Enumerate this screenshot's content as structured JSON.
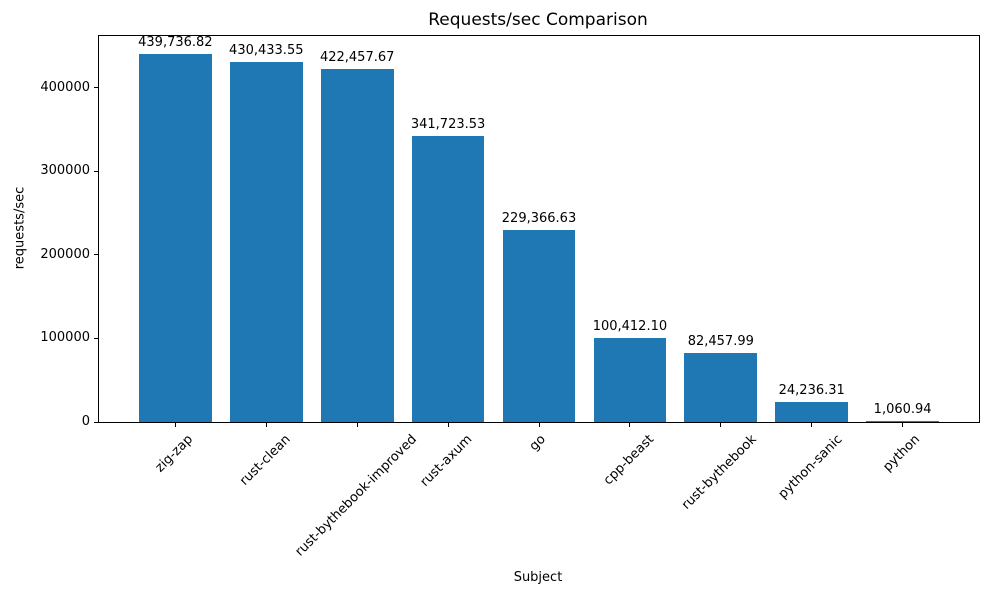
{
  "chart_data": {
    "type": "bar",
    "title": "Requests/sec Comparison",
    "xlabel": "Subject",
    "ylabel": "requests/sec",
    "categories": [
      "zig-zap",
      "rust-clean",
      "rust-bythebook-improved",
      "rust-axum",
      "go",
      "cpp-beast",
      "rust-bythebook",
      "python-sanic",
      "python"
    ],
    "values": [
      439736.82,
      430433.55,
      422457.67,
      341723.53,
      229366.63,
      100412.1,
      82457.99,
      24236.31,
      1060.94
    ],
    "value_labels": [
      "439,736.82",
      "430,433.55",
      "422,457.67",
      "341,723.53",
      "229,366.63",
      "100,412.10",
      "82,457.99",
      "24,236.31",
      "1,060.94"
    ],
    "yticks": [
      0,
      100000,
      200000,
      300000,
      400000
    ],
    "ytick_labels": [
      "0",
      "100000",
      "200000",
      "300000",
      "400000"
    ],
    "ylim": [
      0,
      461723.66
    ],
    "bar_color": "#1f77b4",
    "grid": false,
    "xtick_label_rotation_deg": 45
  }
}
